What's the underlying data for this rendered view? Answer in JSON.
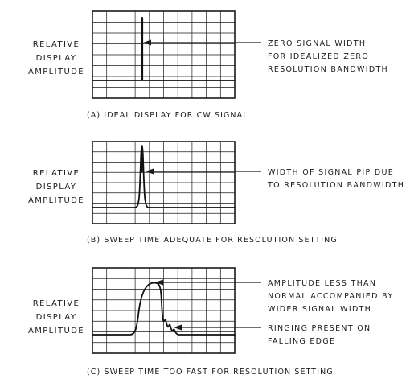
{
  "panels": [
    {
      "id": "a",
      "ylabel": [
        "RELATIVE",
        "DISPLAY",
        "AMPLITUDE"
      ],
      "annotations": [
        {
          "lines": [
            "ZERO SIGNAL WIDTH",
            "FOR IDEALIZED ZERO",
            "RESOLUTION BANDWIDTH"
          ]
        }
      ],
      "caption": "(A) IDEAL DISPLAY FOR CW SIGNAL"
    },
    {
      "id": "b",
      "ylabel": [
        "RELATIVE",
        "DISPLAY",
        "AMPLITUDE"
      ],
      "annotations": [
        {
          "lines": [
            "WIDTH OF SIGNAL PIP DUE",
            "TO RESOLUTION BANDWIDTH"
          ]
        }
      ],
      "caption": "(B) SWEEP TIME ADEQUATE FOR RESOLUTION SETTING"
    },
    {
      "id": "c",
      "ylabel": [
        "RELATIVE",
        "DISPLAY",
        "AMPLITUDE"
      ],
      "annotations": [
        {
          "lines": [
            "AMPLITUDE LESS THAN",
            "NORMAL ACCOMPANIED BY",
            "WIDER SIGNAL WIDTH"
          ]
        },
        {
          "lines": [
            "RINGING PRESENT ON",
            "FALLING EDGE"
          ]
        }
      ],
      "caption": "(C) SWEEP TIME TOO FAST FOR RESOLUTION SETTING"
    }
  ]
}
